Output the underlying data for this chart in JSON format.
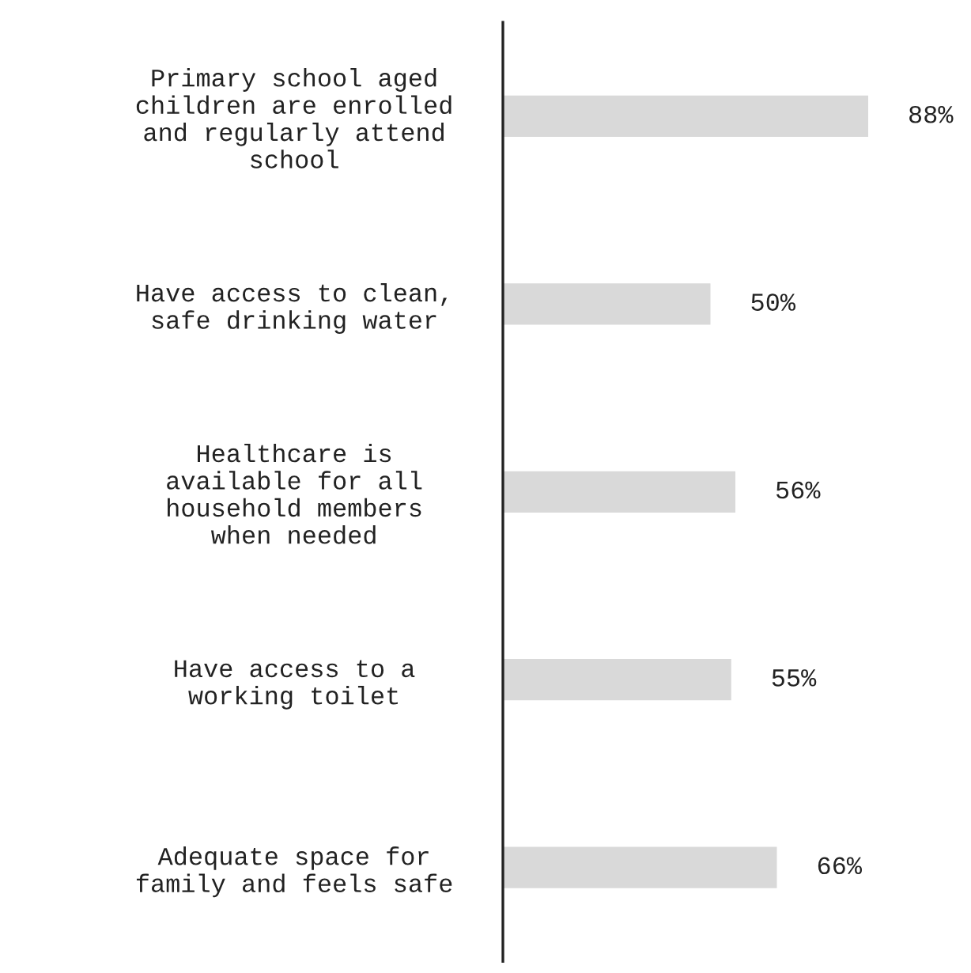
{
  "chart_data": {
    "type": "bar",
    "orientation": "horizontal",
    "categories": [
      "Primary school aged\nchildren are enrolled\nand regularly attend\nschool",
      "Have access to clean,\nsafe drinking water",
      "Healthcare is\navailable for all\nhousehold members\nwhen needed",
      "Have access to a\nworking toilet",
      "Adequate space for\nfamily and feels safe"
    ],
    "values": [
      88,
      50,
      56,
      55,
      66
    ],
    "value_labels": [
      "88%",
      "50%",
      "56%",
      "55%",
      "66%"
    ],
    "color": "#d9d9d9"
  }
}
